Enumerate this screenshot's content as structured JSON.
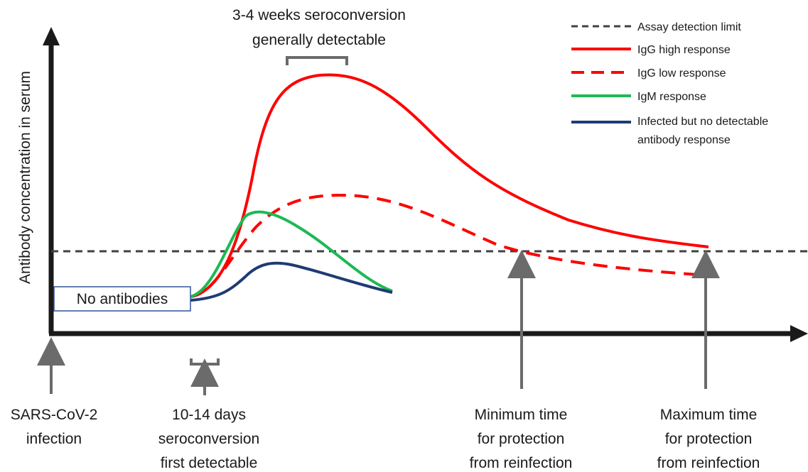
{
  "y_axis_label": "Antibody concentration in serum",
  "top_annotation": [
    "3-4 weeks seroconversion",
    "generally detectable"
  ],
  "baseline_box_label": "No antibodies",
  "legend": [
    {
      "label": "Assay detection limit",
      "color": "#404040",
      "style": "dashed"
    },
    {
      "label": "IgG high response",
      "color": "#ff0000",
      "style": "solid"
    },
    {
      "label": "IgG low response",
      "color": "#ff0000",
      "style": "dashed"
    },
    {
      "label": "IgM response",
      "color": "#1db954",
      "style": "solid"
    },
    {
      "label_lines": [
        "Infected but no detectable",
        "antibody response"
      ],
      "color": "#1f3b73",
      "style": "solid"
    }
  ],
  "timeline_labels": {
    "infection": [
      "SARS-CoV-2",
      "infection"
    ],
    "first_detectable": [
      "10-14 days",
      "seroconversion",
      "first detectable"
    ],
    "minimum_protection": [
      "Minimum time",
      "for protection",
      "from reinfection"
    ],
    "maximum_protection": [
      "Maximum time",
      "for protection",
      "from reinfection"
    ]
  },
  "colors": {
    "axis": "#1a1a1a",
    "pointer": "#6b6b6b",
    "igg": "#ff0000",
    "igm": "#1db954",
    "no_response": "#1f3b73",
    "detection_limit": "#404040"
  }
}
